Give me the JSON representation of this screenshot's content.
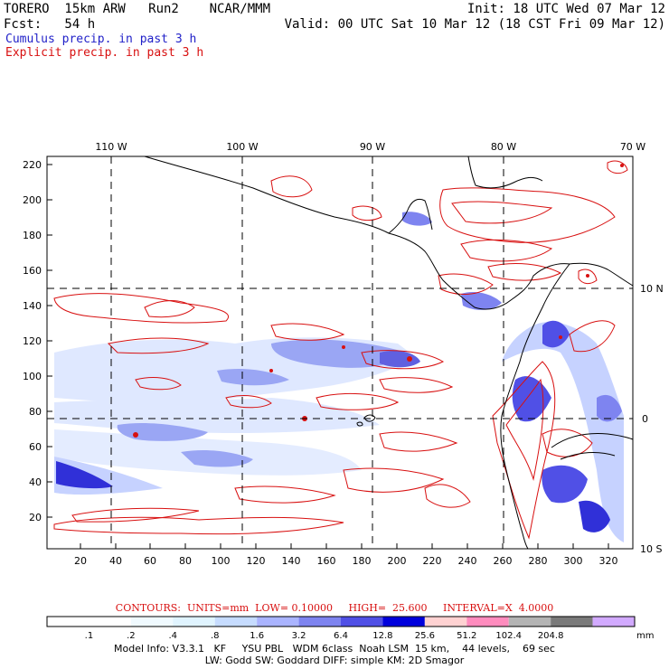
{
  "header": {
    "model": "TORERO  15km ARW   Run2    NCAR/MMM",
    "init": "Init: 18 UTC Wed 07 Mar 12",
    "fcst": "Fcst:   54 h",
    "valid": "Valid: 00 UTC Sat 10 Mar 12 (18 CST Fri 09 Mar 12)",
    "legend_cumulus": "Cumulus precip. in past 3 h",
    "legend_explicit": "Explicit precip. in past 3 h"
  },
  "map": {
    "lon_labels": [
      "110 W",
      "100 W",
      "90 W",
      "80 W",
      "70 W"
    ],
    "lat_labels": [
      "10 N",
      "0",
      "10 S"
    ],
    "y_ticks": [
      "220",
      "200",
      "180",
      "160",
      "140",
      "120",
      "100",
      "80",
      "60",
      "40",
      "20"
    ],
    "x_ticks": [
      "20",
      "40",
      "60",
      "80",
      "100",
      "120",
      "140",
      "160",
      "180",
      "200",
      "220",
      "240",
      "260",
      "280",
      "300",
      "320"
    ]
  },
  "contours": {
    "line": "CONTOURS:  UNITS=mm  LOW= 0.10000     HIGH=  25.600     INTERVAL=X  4.0000"
  },
  "colorbar": {
    "labels": [
      ".1",
      ".2",
      ".4",
      ".8",
      "1.6",
      "3.2",
      "6.4",
      "12.8",
      "25.6",
      "51.2",
      "102.4",
      "204.8"
    ],
    "units": "mm",
    "colors": [
      "#ffffff",
      "#ffffff",
      "#f0faff",
      "#e0f4ff",
      "#c6dcff",
      "#aab4ff",
      "#7e84f0",
      "#5050e6",
      "#0000dc",
      "#ffd2d2",
      "#ff8cbe",
      "#b4b4b4",
      "#7a7a7a",
      "#d2aaff"
    ]
  },
  "model_info": {
    "line1": "Model Info: V3.3.1   KF     YSU PBL   WDM 6class  Noah LSM  15 km,    44 levels,    69 sec",
    "line2": "LW: Godd SW: Goddard DIFF: simple KM: 2D Smagor"
  }
}
